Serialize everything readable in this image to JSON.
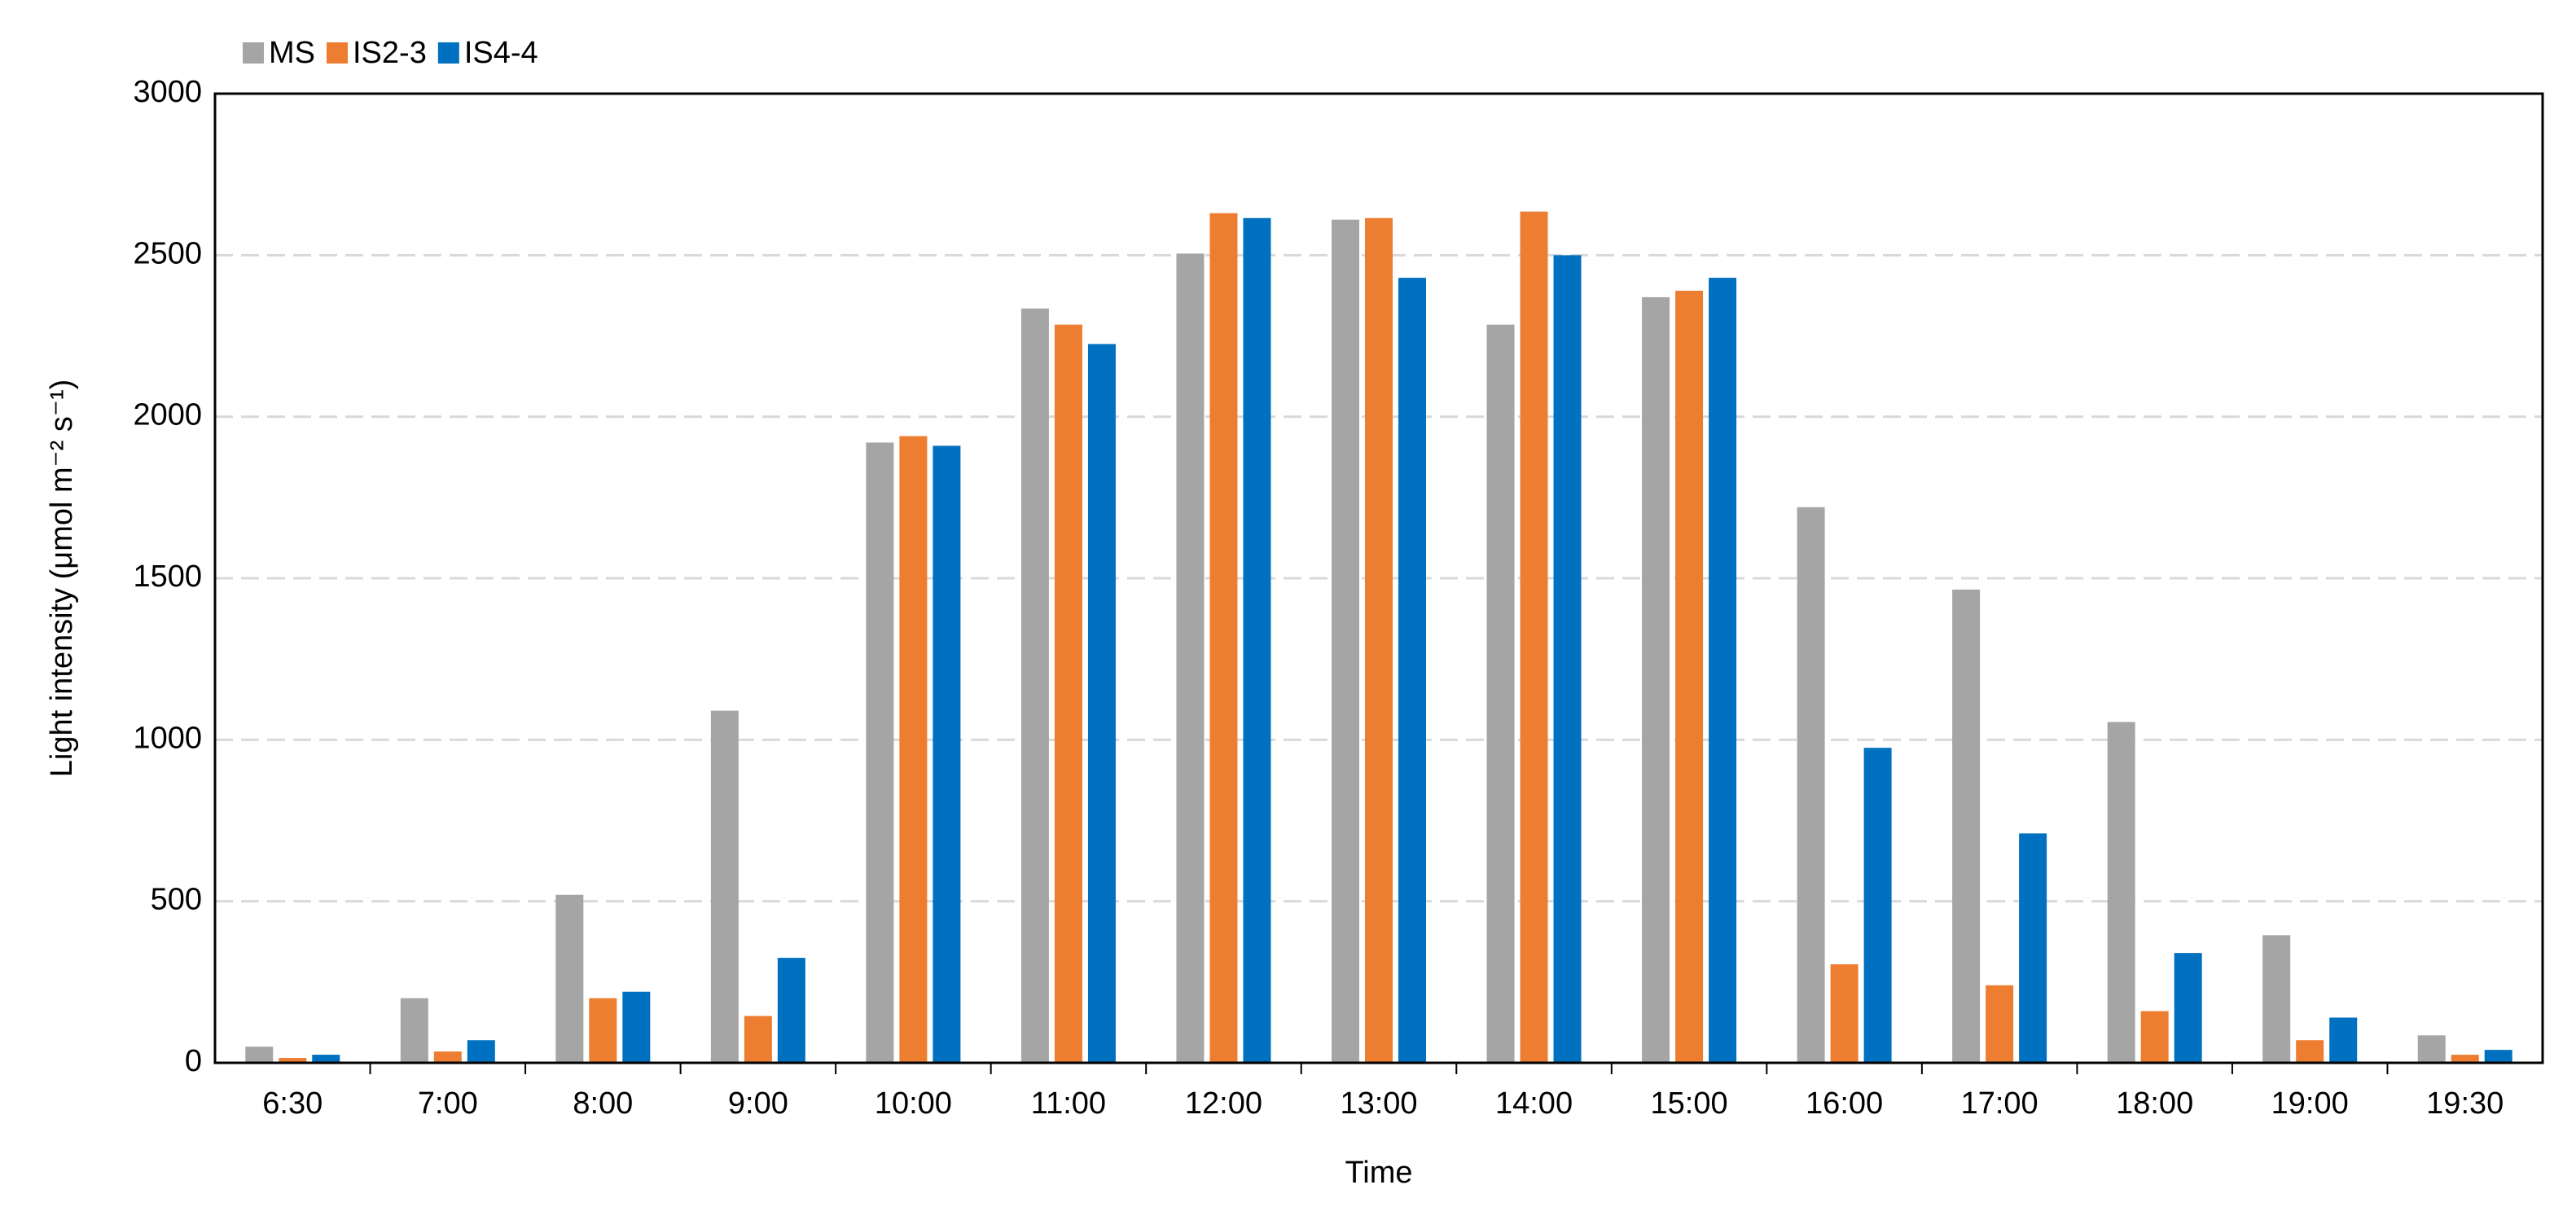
{
  "chart_data": {
    "type": "bar",
    "x_label": "Time",
    "y_label": "Light intensity (μmol m⁻² s⁻¹)",
    "categories": [
      "6:30",
      "7:00",
      "8:00",
      "9:00",
      "10:00",
      "11:00",
      "12:00",
      "13:00",
      "14:00",
      "15:00",
      "16:00",
      "17:00",
      "18:00",
      "19:00",
      "19:30"
    ],
    "series": [
      {
        "name": "MS",
        "color": "#a5a5a5",
        "values": [
          50,
          200,
          520,
          1090,
          1920,
          2335,
          2505,
          2610,
          2285,
          2370,
          1720,
          1465,
          1055,
          395,
          85
        ]
      },
      {
        "name": "IS2-3",
        "color": "#ed7d31",
        "values": [
          15,
          35,
          200,
          145,
          1940,
          2285,
          2630,
          2615,
          2635,
          2390,
          305,
          240,
          160,
          70,
          25
        ]
      },
      {
        "name": "IS4-4",
        "color": "#0070c0",
        "values": [
          25,
          70,
          220,
          325,
          1910,
          2225,
          2615,
          2430,
          2500,
          2430,
          975,
          710,
          340,
          140,
          40
        ]
      }
    ],
    "ylim": [
      0,
      3000
    ],
    "yticks": [
      0,
      500,
      1000,
      1500,
      2000,
      2500,
      3000
    ],
    "grid": true,
    "legend": "top-left"
  }
}
